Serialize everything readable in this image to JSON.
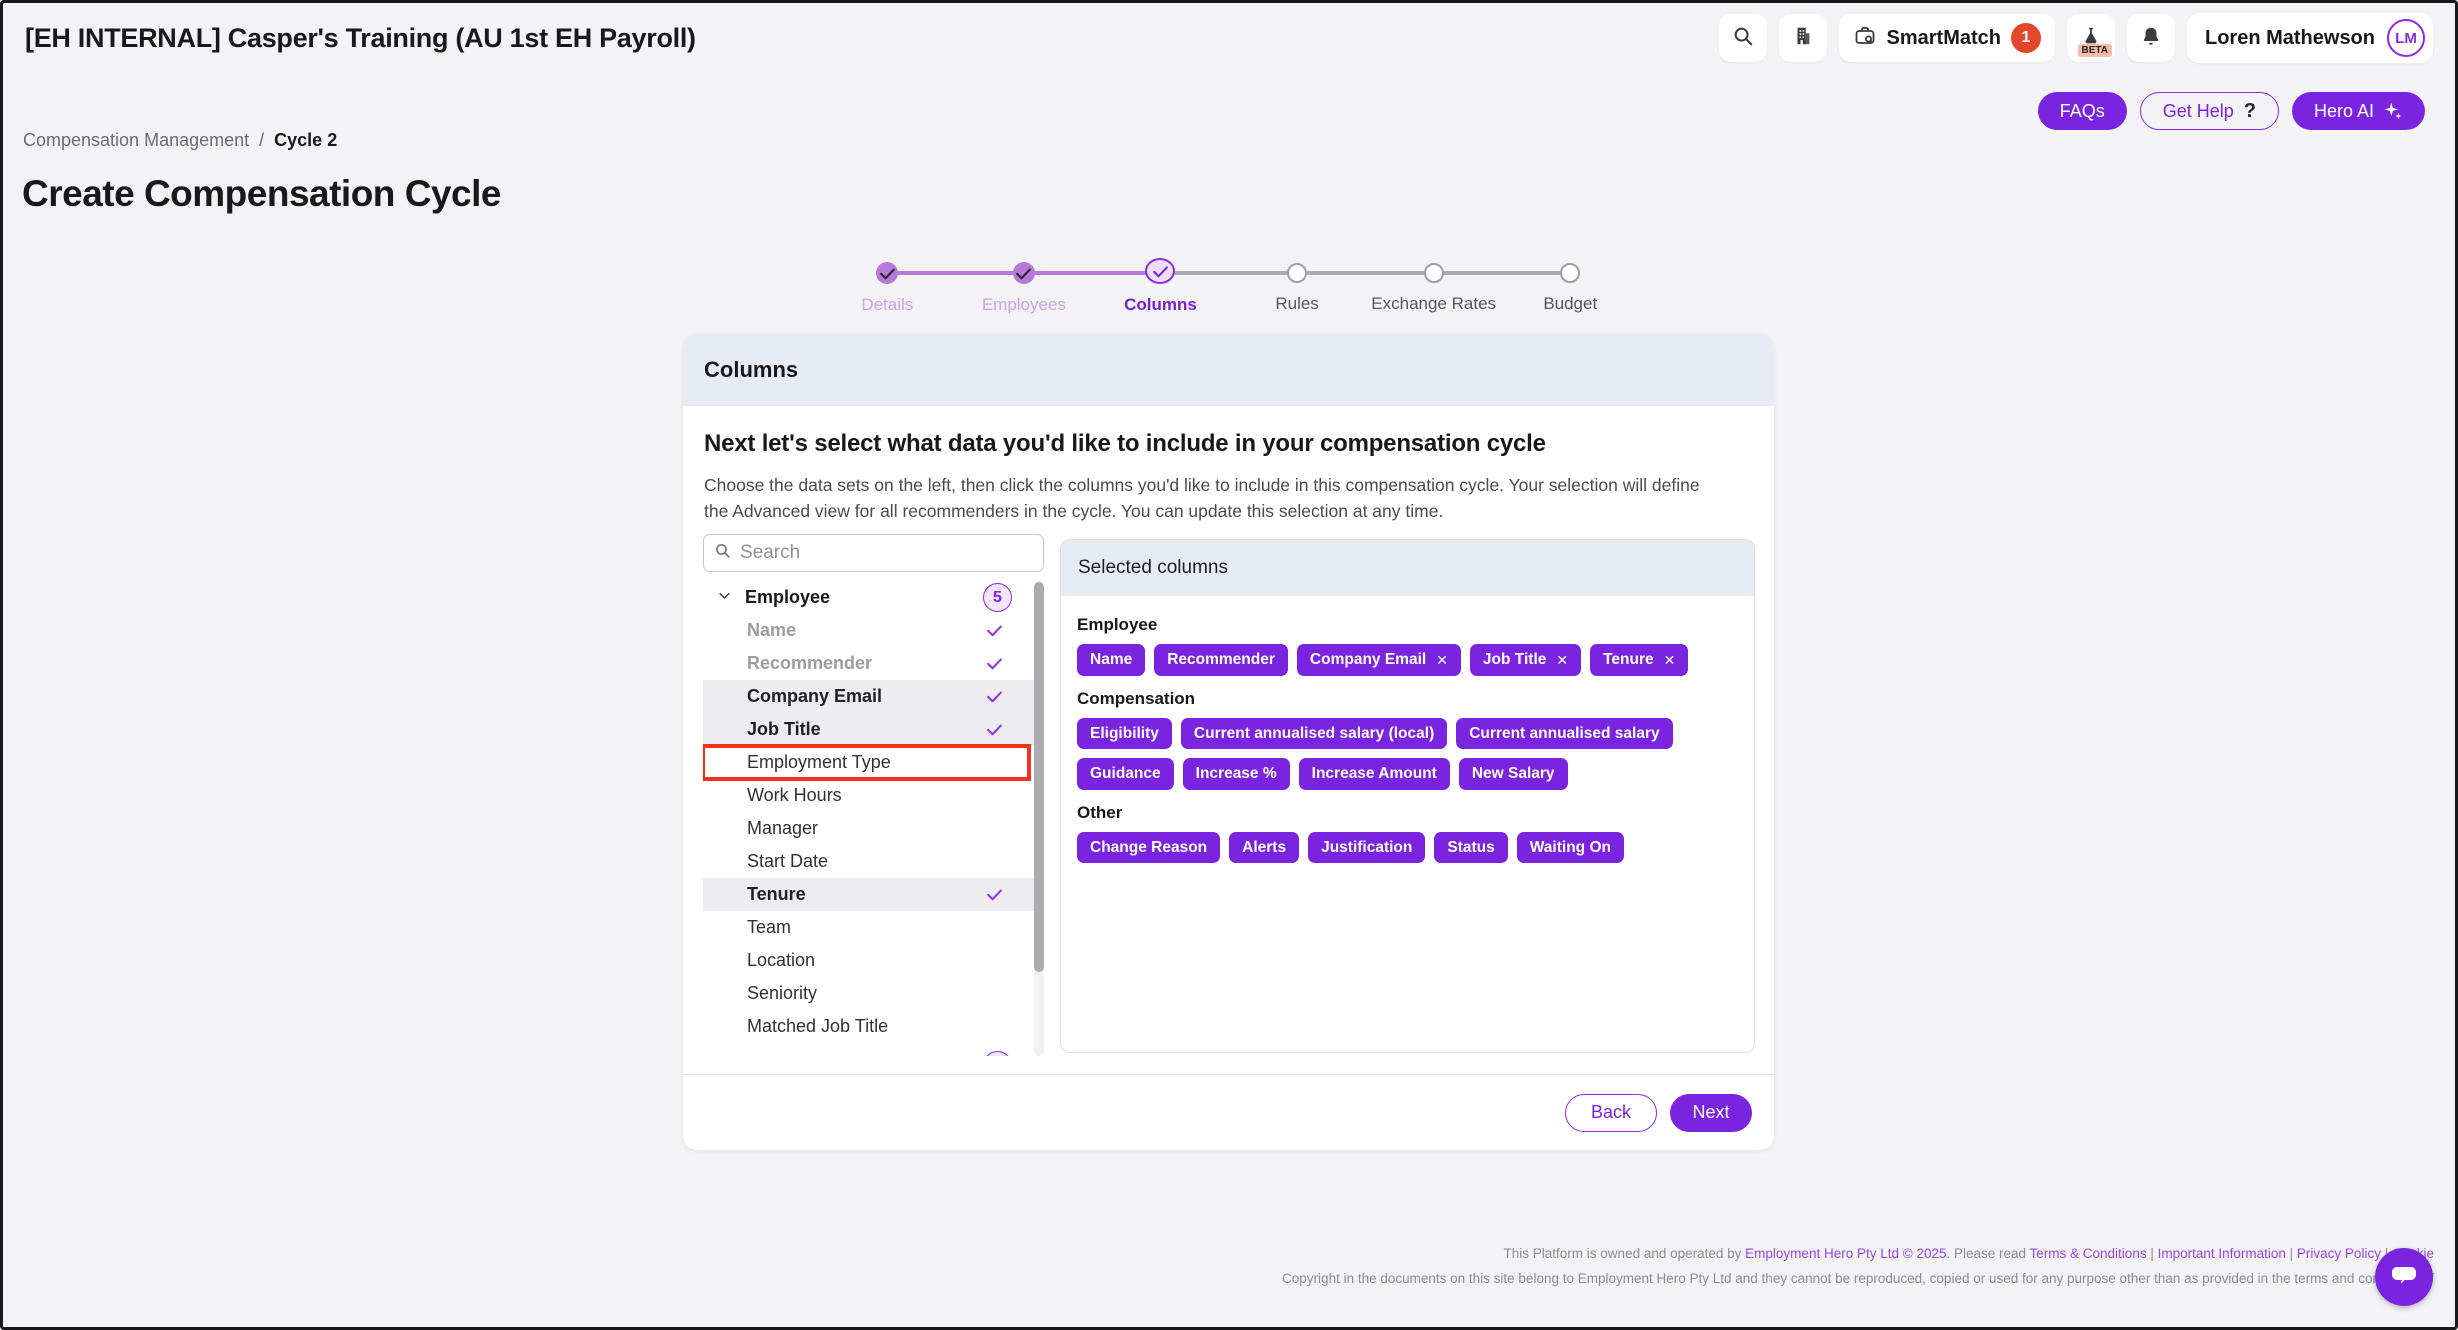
{
  "window": {
    "title": "[EH INTERNAL] Casper's Training (AU 1st EH Payroll)"
  },
  "topbar": {
    "smartmatch": {
      "label": "SmartMatch",
      "badge": "1"
    },
    "beta_label": "BETA",
    "user": {
      "name": "Loren Mathewson",
      "initials": "LM"
    }
  },
  "help_buttons": {
    "faqs": "FAQs",
    "get_help": "Get Help",
    "get_help_icon": "?",
    "hero_ai": "Hero AI"
  },
  "breadcrumb": {
    "parent": "Compensation Management",
    "separator": "/",
    "current": "Cycle 2"
  },
  "page": {
    "title": "Create Compensation Cycle"
  },
  "stepper": {
    "steps": [
      {
        "label": "Details",
        "state": "complete"
      },
      {
        "label": "Employees",
        "state": "complete"
      },
      {
        "label": "Columns",
        "state": "active"
      },
      {
        "label": "Rules",
        "state": "upcoming"
      },
      {
        "label": "Exchange Rates",
        "state": "upcoming"
      },
      {
        "label": "Budget",
        "state": "upcoming"
      }
    ]
  },
  "card": {
    "header": "Columns",
    "heading": "Next let's select what data you'd like to include in your compensation cycle",
    "description": "Choose the data sets on the left, then click the columns you'd like to include in this compensation cycle. Your selection will define the Advanced view for all recommenders in the cycle. You can update this selection at any time.",
    "search": {
      "placeholder": "Search"
    },
    "tree": {
      "group": {
        "label": "Employee",
        "badge": "5",
        "expanded": true
      },
      "items": [
        {
          "label": "Name",
          "checked": true,
          "disabled": true
        },
        {
          "label": "Recommender",
          "checked": true,
          "disabled": true
        },
        {
          "label": "Company Email",
          "checked": true,
          "selected": true
        },
        {
          "label": "Job Title",
          "checked": true,
          "selected": true
        },
        {
          "label": "Employment Type",
          "checked": false,
          "target_highlight": true
        },
        {
          "label": "Work Hours",
          "checked": false
        },
        {
          "label": "Manager",
          "checked": false
        },
        {
          "label": "Start Date",
          "checked": false
        },
        {
          "label": "Tenure",
          "checked": true,
          "selected": true
        },
        {
          "label": "Team",
          "checked": false
        },
        {
          "label": "Location",
          "checked": false
        },
        {
          "label": "Seniority",
          "checked": false
        },
        {
          "label": "Matched Job Title",
          "checked": false
        }
      ],
      "clipped_next_group_badge": true
    },
    "selected_panel": {
      "header": "Selected columns",
      "groups": [
        {
          "name": "Employee",
          "chips": [
            {
              "label": "Name",
              "removable": false
            },
            {
              "label": "Recommender",
              "removable": false
            },
            {
              "label": "Company Email",
              "removable": true
            },
            {
              "label": "Job Title",
              "removable": true
            },
            {
              "label": "Tenure",
              "removable": true
            }
          ]
        },
        {
          "name": "Compensation",
          "chips": [
            {
              "label": "Eligibility",
              "removable": false
            },
            {
              "label": "Current annualised salary (local)",
              "removable": false
            },
            {
              "label": "Current annualised salary",
              "removable": false
            },
            {
              "label": "Guidance",
              "removable": false
            },
            {
              "label": "Increase %",
              "removable": false
            },
            {
              "label": "Increase Amount",
              "removable": false
            },
            {
              "label": "New Salary",
              "removable": false
            }
          ]
        },
        {
          "name": "Other",
          "chips": [
            {
              "label": "Change Reason",
              "removable": false
            },
            {
              "label": "Alerts",
              "removable": false
            },
            {
              "label": "Justification",
              "removable": false
            },
            {
              "label": "Status",
              "removable": false
            },
            {
              "label": "Waiting On",
              "removable": false
            }
          ]
        }
      ]
    },
    "back_label": "Back",
    "next_label": "Next"
  },
  "footer": {
    "line1_segments": [
      {
        "text": "This Platform is owned and operated by ",
        "link": false
      },
      {
        "text": "Employment Hero Pty Ltd © 2025",
        "link": true
      },
      {
        "text": ". Please read ",
        "link": false
      },
      {
        "text": "Terms & Conditions",
        "link": true
      },
      {
        "text": " | ",
        "link": false
      },
      {
        "text": "Important Information",
        "link": true
      },
      {
        "text": " | ",
        "link": false
      },
      {
        "text": "Privacy Policy",
        "link": true
      },
      {
        "text": " | ",
        "link": false
      },
      {
        "text": "Cookie",
        "link": true
      }
    ],
    "line2": "Copyright in the documents on this site belong to Employment Hero Pty Ltd and they cannot be reproduced, copied or used for any purpose other than as provided in the terms and conditions of"
  },
  "colors": {
    "primary_purple": "#7A24E0",
    "active_ring_purple": "#8A2BE2",
    "completed_step_purple": "#B678D9",
    "light_purple_fill": "#F2E4FC",
    "badge_red": "#E5472D",
    "beta_badge_bg": "#F6BCA8",
    "target_highlight_red": "#F3301F",
    "panel_header_bg": "#E7EBF4",
    "selected_row_bg": "#EDEDEF"
  }
}
